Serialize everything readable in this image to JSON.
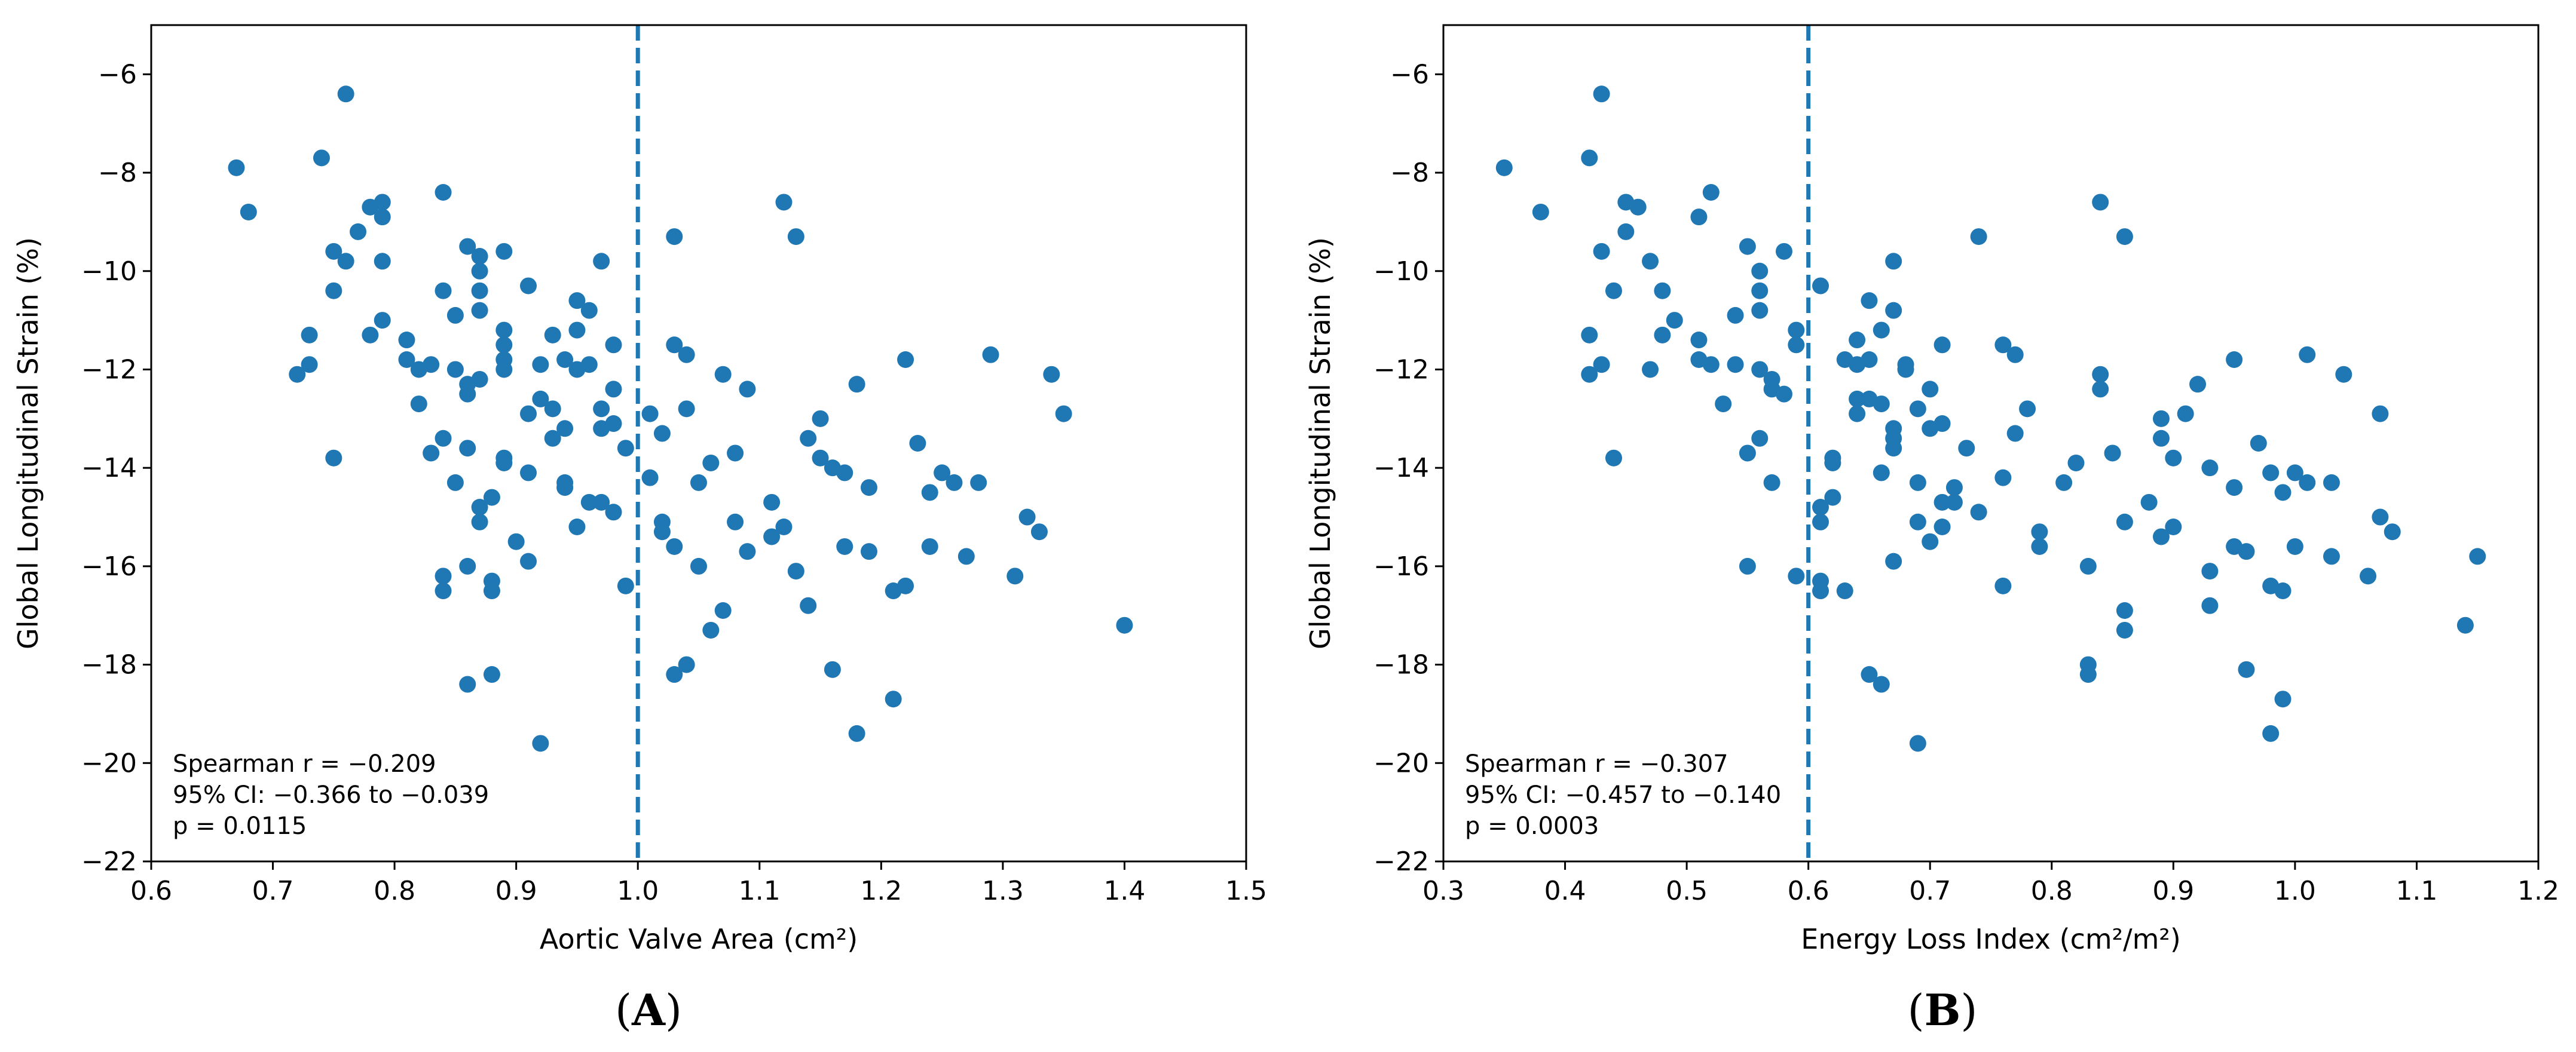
{
  "colors": {
    "marker": "#1f77b4",
    "threshold_line": "#1f77b4",
    "axes": "#000000"
  },
  "chart_data": [
    {
      "type": "scatter",
      "panel": "(A)",
      "panel_parts": {
        "open": "(",
        "letter": "A",
        "close": ")"
      },
      "xlabel": "Aortic Valve Area (cm²)",
      "ylabel": "Global Longitudinal Strain (%)",
      "xlim": [
        0.6,
        1.5
      ],
      "ylim": [
        -22,
        -5
      ],
      "xticks": [
        0.6,
        0.7,
        0.8,
        0.9,
        1.0,
        1.1,
        1.2,
        1.3,
        1.4,
        1.5
      ],
      "xtick_labels": [
        "0.6",
        "0.7",
        "0.8",
        "0.9",
        "1.0",
        "1.1",
        "1.2",
        "1.3",
        "1.4",
        "1.5"
      ],
      "yticks": [
        -6,
        -8,
        -10,
        -12,
        -14,
        -16,
        -18,
        -20,
        -22
      ],
      "ytick_labels": [
        "−6",
        "−8",
        "−10",
        "−12",
        "−14",
        "−16",
        "−18",
        "−20",
        "−22"
      ],
      "threshold_x": 1.0,
      "annotation": [
        "Spearman r = −0.209",
        "95% CI: −0.366 to −0.039",
        "p = 0.0115"
      ],
      "points": [
        [
          0.67,
          -7.9
        ],
        [
          0.68,
          -8.8
        ],
        [
          0.72,
          -12.1
        ],
        [
          0.73,
          -11.3
        ],
        [
          0.73,
          -11.9
        ],
        [
          0.74,
          -7.7
        ],
        [
          0.75,
          -9.6
        ],
        [
          0.75,
          -10.4
        ],
        [
          0.75,
          -13.8
        ],
        [
          0.76,
          -6.4
        ],
        [
          0.76,
          -9.8
        ],
        [
          0.77,
          -9.2
        ],
        [
          0.78,
          -8.7
        ],
        [
          0.78,
          -11.3
        ],
        [
          0.79,
          -8.6
        ],
        [
          0.79,
          -8.9
        ],
        [
          0.79,
          -9.8
        ],
        [
          0.79,
          -11.0
        ],
        [
          0.81,
          -11.4
        ],
        [
          0.81,
          -11.8
        ],
        [
          0.82,
          -12.0
        ],
        [
          0.82,
          -12.7
        ],
        [
          0.83,
          -11.9
        ],
        [
          0.83,
          -13.7
        ],
        [
          0.84,
          -8.4
        ],
        [
          0.84,
          -10.4
        ],
        [
          0.84,
          -13.4
        ],
        [
          0.84,
          -16.2
        ],
        [
          0.84,
          -16.5
        ],
        [
          0.85,
          -10.9
        ],
        [
          0.85,
          -12.0
        ],
        [
          0.85,
          -14.3
        ],
        [
          0.86,
          -9.5
        ],
        [
          0.86,
          -12.3
        ],
        [
          0.86,
          -12.5
        ],
        [
          0.86,
          -13.6
        ],
        [
          0.86,
          -16.0
        ],
        [
          0.86,
          -18.4
        ],
        [
          0.87,
          -9.7
        ],
        [
          0.87,
          -10.0
        ],
        [
          0.87,
          -10.4
        ],
        [
          0.87,
          -10.8
        ],
        [
          0.87,
          -12.2
        ],
        [
          0.87,
          -14.8
        ],
        [
          0.87,
          -15.1
        ],
        [
          0.88,
          -14.6
        ],
        [
          0.88,
          -16.3
        ],
        [
          0.88,
          -16.5
        ],
        [
          0.88,
          -18.2
        ],
        [
          0.89,
          -9.6
        ],
        [
          0.89,
          -11.2
        ],
        [
          0.89,
          -11.5
        ],
        [
          0.89,
          -11.8
        ],
        [
          0.89,
          -12.0
        ],
        [
          0.89,
          -13.8
        ],
        [
          0.89,
          -13.9
        ],
        [
          0.9,
          -15.5
        ],
        [
          0.91,
          -10.3
        ],
        [
          0.91,
          -12.9
        ],
        [
          0.91,
          -14.1
        ],
        [
          0.91,
          -15.9
        ],
        [
          0.92,
          -11.9
        ],
        [
          0.92,
          -12.6
        ],
        [
          0.92,
          -19.6
        ],
        [
          0.93,
          -11.3
        ],
        [
          0.93,
          -12.8
        ],
        [
          0.93,
          -13.4
        ],
        [
          0.94,
          -11.8
        ],
        [
          0.94,
          -13.2
        ],
        [
          0.94,
          -14.3
        ],
        [
          0.94,
          -14.4
        ],
        [
          0.95,
          -10.6
        ],
        [
          0.95,
          -11.2
        ],
        [
          0.95,
          -12.0
        ],
        [
          0.95,
          -15.2
        ],
        [
          0.96,
          -10.8
        ],
        [
          0.96,
          -11.9
        ],
        [
          0.96,
          -14.7
        ],
        [
          0.97,
          -9.8
        ],
        [
          0.97,
          -12.8
        ],
        [
          0.97,
          -13.2
        ],
        [
          0.97,
          -14.7
        ],
        [
          0.98,
          -11.5
        ],
        [
          0.98,
          -12.4
        ],
        [
          0.98,
          -13.1
        ],
        [
          0.98,
          -14.9
        ],
        [
          0.99,
          -13.6
        ],
        [
          0.99,
          -16.4
        ],
        [
          1.01,
          -12.9
        ],
        [
          1.01,
          -14.2
        ],
        [
          1.02,
          -13.3
        ],
        [
          1.02,
          -15.1
        ],
        [
          1.02,
          -15.3
        ],
        [
          1.03,
          -9.3
        ],
        [
          1.03,
          -11.5
        ],
        [
          1.03,
          -15.6
        ],
        [
          1.03,
          -18.2
        ],
        [
          1.04,
          -11.7
        ],
        [
          1.04,
          -12.8
        ],
        [
          1.04,
          -18.0
        ],
        [
          1.05,
          -14.3
        ],
        [
          1.05,
          -16.0
        ],
        [
          1.06,
          -13.9
        ],
        [
          1.06,
          -17.3
        ],
        [
          1.07,
          -12.1
        ],
        [
          1.07,
          -16.9
        ],
        [
          1.08,
          -13.7
        ],
        [
          1.08,
          -15.1
        ],
        [
          1.09,
          -12.4
        ],
        [
          1.09,
          -15.7
        ],
        [
          1.11,
          -14.7
        ],
        [
          1.11,
          -15.4
        ],
        [
          1.12,
          -8.6
        ],
        [
          1.12,
          -15.2
        ],
        [
          1.13,
          -9.3
        ],
        [
          1.13,
          -16.1
        ],
        [
          1.14,
          -13.4
        ],
        [
          1.14,
          -16.8
        ],
        [
          1.15,
          -13.0
        ],
        [
          1.15,
          -13.8
        ],
        [
          1.16,
          -14.0
        ],
        [
          1.16,
          -18.1
        ],
        [
          1.17,
          -14.1
        ],
        [
          1.17,
          -15.6
        ],
        [
          1.18,
          -12.3
        ],
        [
          1.18,
          -19.4
        ],
        [
          1.19,
          -14.4
        ],
        [
          1.19,
          -15.7
        ],
        [
          1.21,
          -16.5
        ],
        [
          1.21,
          -18.7
        ],
        [
          1.22,
          -11.8
        ],
        [
          1.22,
          -16.4
        ],
        [
          1.23,
          -13.5
        ],
        [
          1.24,
          -14.5
        ],
        [
          1.24,
          -15.6
        ],
        [
          1.25,
          -14.1
        ],
        [
          1.26,
          -14.3
        ],
        [
          1.27,
          -15.8
        ],
        [
          1.28,
          -14.3
        ],
        [
          1.29,
          -11.7
        ],
        [
          1.31,
          -16.2
        ],
        [
          1.32,
          -15.0
        ],
        [
          1.33,
          -15.3
        ],
        [
          1.34,
          -12.1
        ],
        [
          1.35,
          -12.9
        ],
        [
          1.4,
          -17.2
        ]
      ]
    },
    {
      "type": "scatter",
      "panel": "(B)",
      "panel_parts": {
        "open": "(",
        "letter": "B",
        "close": ")"
      },
      "xlabel": "Energy Loss Index (cm²/m²)",
      "ylabel": "Global Longitudinal Strain (%)",
      "xlim": [
        0.3,
        1.2
      ],
      "ylim": [
        -22,
        -5
      ],
      "xticks": [
        0.3,
        0.4,
        0.5,
        0.6,
        0.7,
        0.8,
        0.9,
        1.0,
        1.1,
        1.2
      ],
      "xtick_labels": [
        "0.3",
        "0.4",
        "0.5",
        "0.6",
        "0.7",
        "0.8",
        "0.9",
        "1.0",
        "1.1",
        "1.2"
      ],
      "yticks": [
        -6,
        -8,
        -10,
        -12,
        -14,
        -16,
        -18,
        -20,
        -22
      ],
      "ytick_labels": [
        "−6",
        "−8",
        "−10",
        "−12",
        "−14",
        "−16",
        "−18",
        "−20",
        "−22"
      ],
      "threshold_x": 0.6,
      "annotation": [
        "Spearman r = −0.307",
        "95% CI: −0.457 to −0.140",
        "p = 0.0003"
      ],
      "points": [
        [
          0.35,
          -7.9
        ],
        [
          0.38,
          -8.8
        ],
        [
          0.42,
          -7.7
        ],
        [
          0.42,
          -11.3
        ],
        [
          0.42,
          -12.1
        ],
        [
          0.43,
          -6.4
        ],
        [
          0.43,
          -9.6
        ],
        [
          0.43,
          -11.9
        ],
        [
          0.44,
          -10.4
        ],
        [
          0.44,
          -13.8
        ],
        [
          0.45,
          -8.6
        ],
        [
          0.45,
          -9.2
        ],
        [
          0.46,
          -8.7
        ],
        [
          0.47,
          -9.8
        ],
        [
          0.47,
          -12.0
        ],
        [
          0.48,
          -10.4
        ],
        [
          0.48,
          -11.3
        ],
        [
          0.49,
          -11.0
        ],
        [
          0.51,
          -8.9
        ],
        [
          0.51,
          -11.4
        ],
        [
          0.51,
          -11.8
        ],
        [
          0.52,
          -8.4
        ],
        [
          0.52,
          -11.9
        ],
        [
          0.53,
          -12.7
        ],
        [
          0.54,
          -10.9
        ],
        [
          0.54,
          -11.9
        ],
        [
          0.55,
          -9.5
        ],
        [
          0.55,
          -13.7
        ],
        [
          0.55,
          -16.0
        ],
        [
          0.56,
          -10.0
        ],
        [
          0.56,
          -10.4
        ],
        [
          0.56,
          -10.8
        ],
        [
          0.56,
          -12.0
        ],
        [
          0.56,
          -13.4
        ],
        [
          0.57,
          -12.2
        ],
        [
          0.57,
          -12.4
        ],
        [
          0.57,
          -14.3
        ],
        [
          0.58,
          -9.6
        ],
        [
          0.58,
          -12.5
        ],
        [
          0.59,
          -11.2
        ],
        [
          0.59,
          -11.5
        ],
        [
          0.59,
          -16.2
        ],
        [
          0.61,
          -10.3
        ],
        [
          0.61,
          -14.8
        ],
        [
          0.61,
          -15.1
        ],
        [
          0.61,
          -16.3
        ],
        [
          0.61,
          -16.5
        ],
        [
          0.62,
          -13.8
        ],
        [
          0.62,
          -13.9
        ],
        [
          0.62,
          -14.6
        ],
        [
          0.63,
          -11.8
        ],
        [
          0.63,
          -16.5
        ],
        [
          0.64,
          -11.4
        ],
        [
          0.64,
          -11.9
        ],
        [
          0.64,
          -12.6
        ],
        [
          0.64,
          -12.9
        ],
        [
          0.65,
          -10.6
        ],
        [
          0.65,
          -11.8
        ],
        [
          0.65,
          -12.6
        ],
        [
          0.65,
          -18.2
        ],
        [
          0.66,
          -11.2
        ],
        [
          0.66,
          -12.7
        ],
        [
          0.66,
          -14.1
        ],
        [
          0.66,
          -18.4
        ],
        [
          0.67,
          -9.8
        ],
        [
          0.67,
          -10.8
        ],
        [
          0.67,
          -13.2
        ],
        [
          0.67,
          -13.4
        ],
        [
          0.67,
          -13.6
        ],
        [
          0.67,
          -15.9
        ],
        [
          0.68,
          -11.9
        ],
        [
          0.68,
          -12.0
        ],
        [
          0.69,
          -12.8
        ],
        [
          0.69,
          -14.3
        ],
        [
          0.69,
          -15.1
        ],
        [
          0.69,
          -19.6
        ],
        [
          0.7,
          -12.4
        ],
        [
          0.7,
          -13.2
        ],
        [
          0.7,
          -15.5
        ],
        [
          0.71,
          -11.5
        ],
        [
          0.71,
          -13.1
        ],
        [
          0.71,
          -14.7
        ],
        [
          0.71,
          -15.2
        ],
        [
          0.72,
          -14.4
        ],
        [
          0.72,
          -14.7
        ],
        [
          0.73,
          -13.6
        ],
        [
          0.74,
          -9.3
        ],
        [
          0.74,
          -14.9
        ],
        [
          0.76,
          -11.5
        ],
        [
          0.76,
          -14.2
        ],
        [
          0.76,
          -16.4
        ],
        [
          0.77,
          -11.7
        ],
        [
          0.77,
          -13.3
        ],
        [
          0.78,
          -12.8
        ],
        [
          0.79,
          -15.3
        ],
        [
          0.79,
          -15.6
        ],
        [
          0.81,
          -14.3
        ],
        [
          0.82,
          -13.9
        ],
        [
          0.83,
          -16.0
        ],
        [
          0.83,
          -18.0
        ],
        [
          0.83,
          -18.2
        ],
        [
          0.84,
          -8.6
        ],
        [
          0.84,
          -12.1
        ],
        [
          0.84,
          -12.4
        ],
        [
          0.85,
          -13.7
        ],
        [
          0.86,
          -9.3
        ],
        [
          0.86,
          -15.1
        ],
        [
          0.86,
          -16.9
        ],
        [
          0.86,
          -17.3
        ],
        [
          0.88,
          -14.7
        ],
        [
          0.89,
          -13.0
        ],
        [
          0.89,
          -13.4
        ],
        [
          0.89,
          -15.4
        ],
        [
          0.9,
          -13.8
        ],
        [
          0.9,
          -15.2
        ],
        [
          0.91,
          -12.9
        ],
        [
          0.92,
          -12.3
        ],
        [
          0.93,
          -14.0
        ],
        [
          0.93,
          -16.1
        ],
        [
          0.93,
          -16.8
        ],
        [
          0.95,
          -11.8
        ],
        [
          0.95,
          -14.4
        ],
        [
          0.95,
          -15.6
        ],
        [
          0.96,
          -15.7
        ],
        [
          0.96,
          -18.1
        ],
        [
          0.97,
          -13.5
        ],
        [
          0.98,
          -14.1
        ],
        [
          0.98,
          -16.4
        ],
        [
          0.98,
          -19.4
        ],
        [
          0.99,
          -14.5
        ],
        [
          0.99,
          -16.5
        ],
        [
          0.99,
          -18.7
        ],
        [
          1.0,
          -14.1
        ],
        [
          1.0,
          -15.6
        ],
        [
          1.01,
          -11.7
        ],
        [
          1.01,
          -14.3
        ],
        [
          1.03,
          -14.3
        ],
        [
          1.03,
          -15.8
        ],
        [
          1.04,
          -12.1
        ],
        [
          1.06,
          -16.2
        ],
        [
          1.07,
          -12.9
        ],
        [
          1.07,
          -15.0
        ],
        [
          1.08,
          -15.3
        ],
        [
          1.14,
          -17.2
        ],
        [
          1.15,
          -15.8
        ]
      ]
    }
  ]
}
